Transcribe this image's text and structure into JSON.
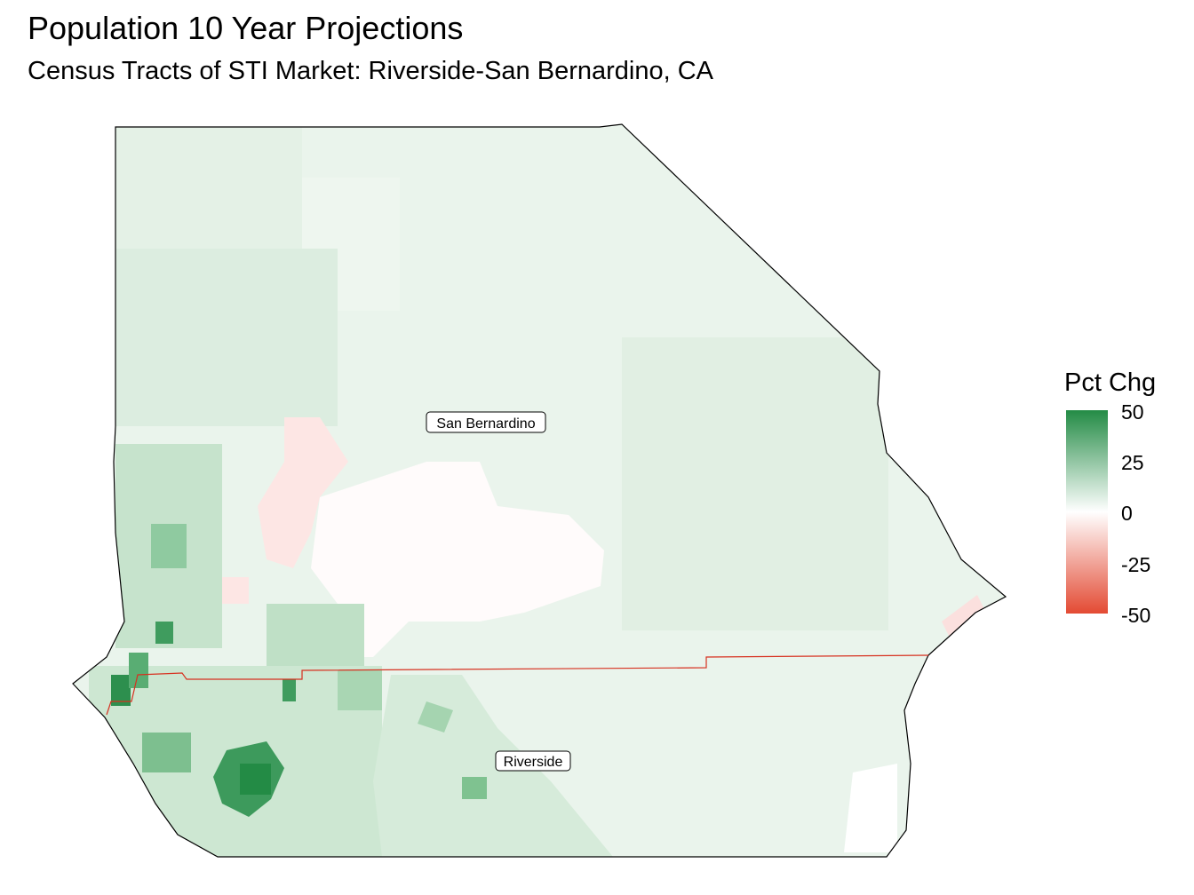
{
  "title": "Population 10 Year Projections",
  "subtitle": "Census Tracts of STI Market: Riverside-San Bernardino, CA",
  "map": {
    "counties": [
      {
        "name": "San Bernardino"
      },
      {
        "name": "Riverside"
      }
    ],
    "county_boundary_color": "#d7301f",
    "outline_color": "#000000"
  },
  "legend": {
    "title": "Pct Chg",
    "ticks": [
      "50",
      "25",
      "0",
      "-25",
      "-50"
    ],
    "range": [
      -50,
      50
    ],
    "colors": {
      "high": "#238b45",
      "mid": "#ffffff",
      "low": "#e34a33"
    }
  }
}
